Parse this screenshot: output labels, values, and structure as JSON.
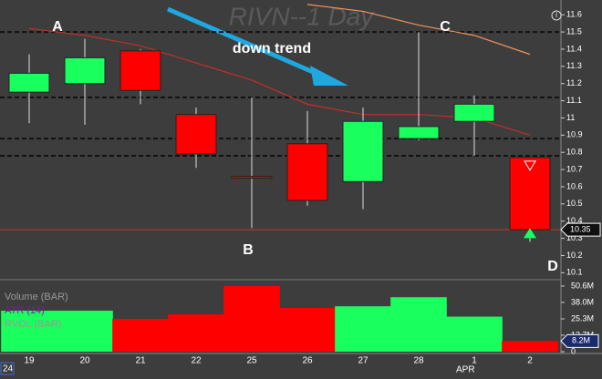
{
  "chart_data": {
    "type": "candlestick",
    "title": "RIVN--1 Day",
    "categories": [
      "19",
      "20",
      "21",
      "22",
      "25",
      "26",
      "27",
      "28",
      "1",
      "2"
    ],
    "month_label": "APR",
    "year_label": "24",
    "open": [
      11.15,
      11.2,
      11.39,
      11.02,
      10.66,
      10.85,
      10.63,
      10.88,
      10.98,
      10.77
    ],
    "high": [
      11.37,
      11.46,
      11.4,
      11.06,
      11.12,
      11.04,
      11.06,
      11.5,
      11.13,
      10.77
    ],
    "low": [
      10.97,
      10.96,
      11.08,
      10.71,
      10.36,
      10.49,
      10.47,
      10.87,
      10.78,
      10.28
    ],
    "close": [
      11.26,
      11.35,
      11.16,
      10.79,
      10.65,
      10.52,
      10.98,
      10.95,
      11.08,
      10.35
    ],
    "up_color": "#19ff5e",
    "down_color": "#ff0000",
    "ylim": [
      10.07,
      11.67
    ],
    "yticks": [
      10.1,
      10.2,
      10.3,
      10.4,
      10.5,
      10.6,
      10.7,
      10.8,
      10.9,
      11,
      11.1,
      11.2,
      11.3,
      11.4,
      11.5,
      11.6
    ],
    "levels": [
      11.5,
      11.12,
      10.88,
      10.78
    ],
    "last_price": 10.35,
    "last_price_color": "#c0392b",
    "lines": [
      {
        "color": "#c0302b",
        "values": [
          11.52,
          11.48,
          11.42,
          11.32,
          11.22,
          11.08,
          11.02,
          11.02,
          11.0,
          10.9
        ]
      },
      {
        "color": "#f0945c",
        "values": [
          null,
          null,
          null,
          null,
          null,
          11.66,
          11.62,
          11.54,
          11.48,
          11.37
        ]
      }
    ],
    "annotations": [
      "A",
      "B",
      "C",
      "D",
      "down trend"
    ],
    "volume": {
      "labels": [
        "Volume (BAR)",
        "ATR (14)",
        "RVOL (BAR)"
      ],
      "values": [
        31600000,
        31600000,
        25300000,
        28800000,
        50600000,
        33700000,
        35000000,
        42000000,
        27000000,
        8200000
      ],
      "ylim": [
        0,
        53400000
      ],
      "yticks": [
        {
          "value": 0,
          "label": "0"
        },
        {
          "value": 12700000,
          "label": "12.7M"
        },
        {
          "value": 25300000,
          "label": "25.3M"
        },
        {
          "value": 38000000,
          "label": "38.0M"
        },
        {
          "value": 50600000,
          "label": "50.6M"
        }
      ],
      "last": {
        "value": 8200000,
        "label": "8.2M"
      }
    }
  }
}
